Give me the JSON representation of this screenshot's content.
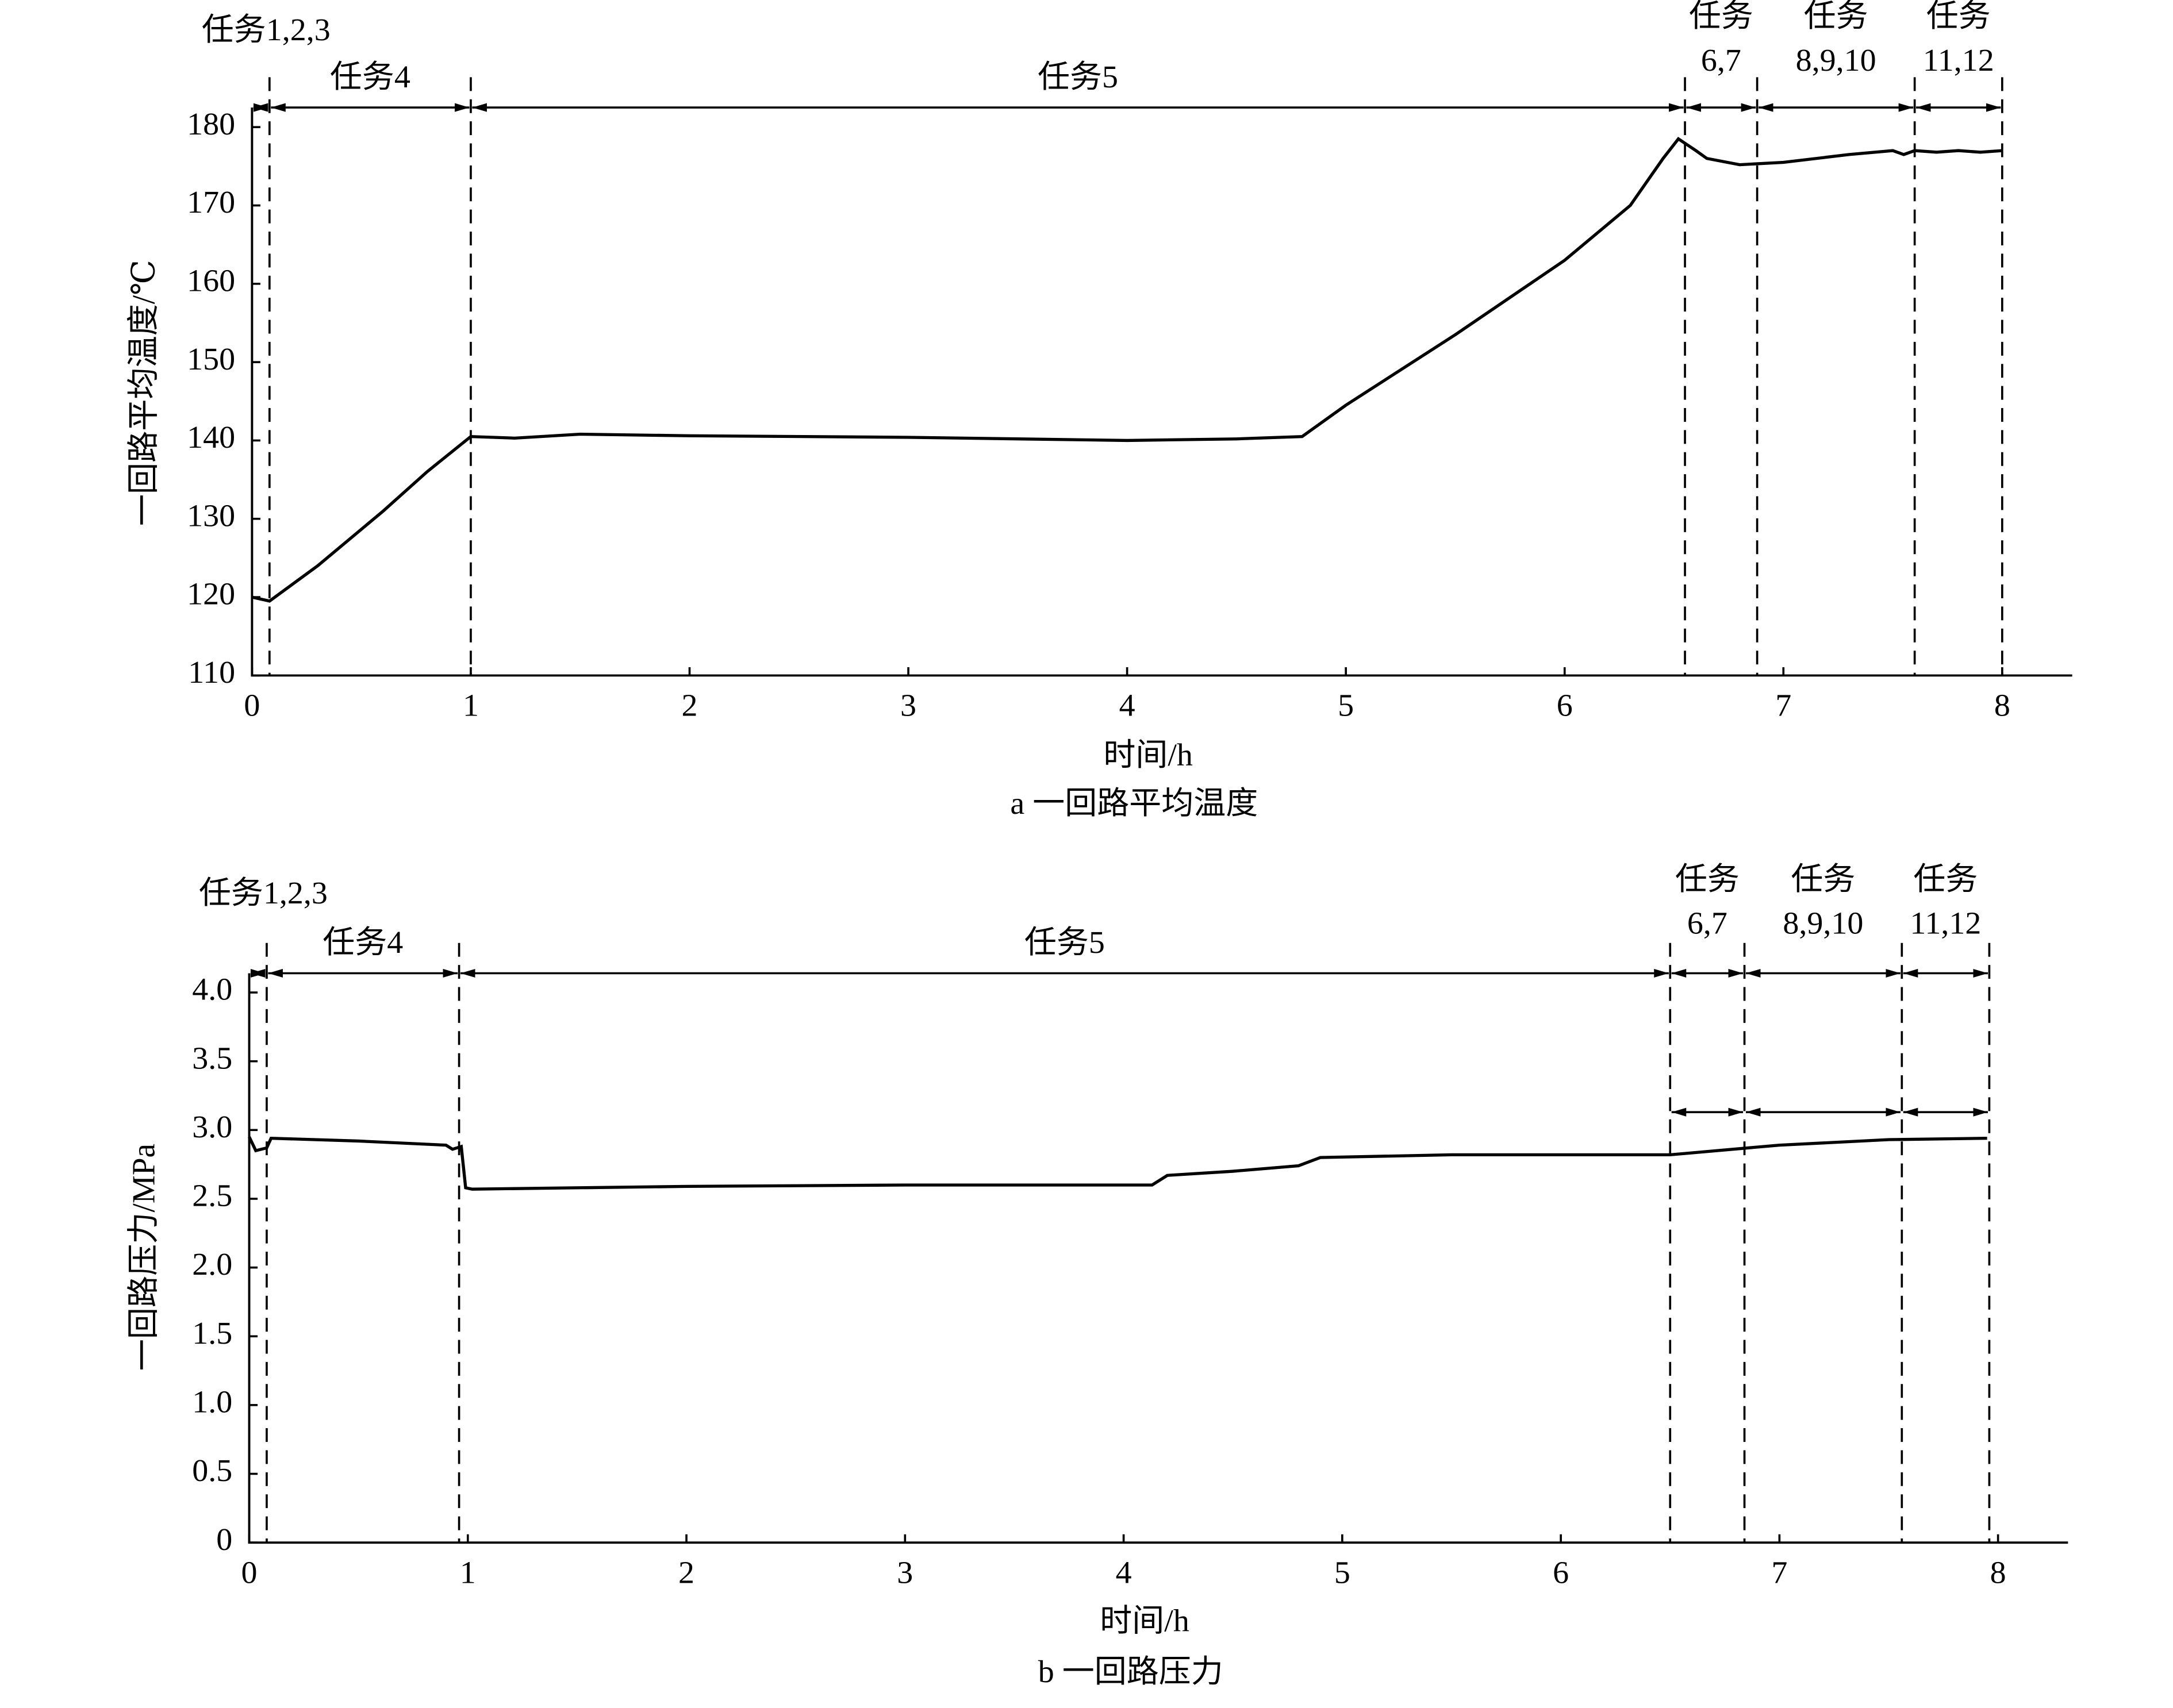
{
  "chart_data": [
    {
      "type": "line",
      "caption": "a  一回路平均温度",
      "xlabel": "时间/h",
      "ylabel": "一回路平均温度/℃",
      "color": "#000000",
      "x": [
        0,
        0.08,
        0.3,
        0.6,
        0.8,
        1,
        1.2,
        1.5,
        2,
        3,
        4,
        4.5,
        4.8,
        5,
        5.5,
        6,
        6.3,
        6.45,
        6.52,
        6.6,
        6.65,
        6.8,
        7,
        7.3,
        7.5,
        7.55,
        7.6,
        7.7,
        7.8,
        7.9,
        8
      ],
      "values": [
        120,
        119.5,
        124,
        131,
        136,
        140.5,
        140.3,
        140.8,
        140.6,
        140.4,
        140,
        140.2,
        140.5,
        144.5,
        153.5,
        163,
        170,
        176,
        178.5,
        177,
        176,
        175.2,
        175.5,
        176.5,
        177,
        176.5,
        177,
        176.8,
        177,
        176.8,
        177
      ],
      "xlim": [
        0,
        8.32
      ],
      "ylim": [
        110,
        182.5
      ],
      "xticks": [
        0,
        1,
        2,
        3,
        4,
        5,
        6,
        7,
        8
      ],
      "yticks": [
        110,
        120,
        130,
        140,
        150,
        160,
        170,
        180
      ],
      "phases": [
        {
          "label": [
            "任务1,2,3"
          ],
          "start": 0,
          "end": 0.08
        },
        {
          "label": [
            "任务4"
          ],
          "start": 0.08,
          "end": 1
        },
        {
          "label": [
            "任务5"
          ],
          "start": 1,
          "end": 6.55
        },
        {
          "label": [
            "任务",
            "6,7"
          ],
          "start": 6.55,
          "end": 6.88
        },
        {
          "label": [
            "任务",
            "8,9,10"
          ],
          "start": 6.88,
          "end": 7.6
        },
        {
          "label": [
            "任务",
            "11,12"
          ],
          "start": 7.6,
          "end": 8
        }
      ]
    },
    {
      "type": "line",
      "caption": "b  一回路压力",
      "xlabel": "时间/h",
      "ylabel": "一回路压力/MPa",
      "color": "#000000",
      "x": [
        0,
        0.03,
        0.08,
        0.1,
        0.5,
        0.9,
        0.93,
        0.97,
        0.99,
        1.02,
        2,
        3,
        4,
        4.13,
        4.2,
        4.5,
        4.8,
        4.9,
        5.5,
        6,
        6.5,
        7,
        7.5,
        7.95
      ],
      "values": [
        2.95,
        2.85,
        2.87,
        2.94,
        2.92,
        2.89,
        2.86,
        2.88,
        2.58,
        2.57,
        2.59,
        2.6,
        2.6,
        2.6,
        2.67,
        2.7,
        2.74,
        2.8,
        2.82,
        2.82,
        2.82,
        2.89,
        2.93,
        2.94
      ],
      "xlim": [
        0,
        8.32
      ],
      "ylim": [
        0,
        4.14
      ],
      "xticks": [
        0,
        1,
        2,
        3,
        4,
        5,
        6,
        7,
        8
      ],
      "yticks": [
        0,
        0.5,
        {
          "value": 1,
          "label": "1.0"
        },
        1.5,
        {
          "value": 2,
          "label": "2.0"
        },
        2.5,
        {
          "value": 3,
          "label": "3.0"
        },
        3.5,
        {
          "value": 4,
          "label": "4.0"
        }
      ],
      "phases": [
        {
          "label": [
            "任务1,2,3"
          ],
          "start": 0,
          "end": 0.08
        },
        {
          "label": [
            "任务4"
          ],
          "start": 0.08,
          "end": 0.96
        },
        {
          "label": [
            "任务5"
          ],
          "start": 0.96,
          "end": 6.5
        },
        {
          "label": [
            "任务",
            "6,7"
          ],
          "start": 6.5,
          "end": 6.84,
          "lower_arrow": 3.13
        },
        {
          "label": [
            "任务",
            "8,9,10"
          ],
          "start": 6.84,
          "end": 7.56,
          "lower_arrow": 3.13
        },
        {
          "label": [
            "任务",
            "11,12"
          ],
          "start": 7.56,
          "end": 7.96,
          "lower_arrow": 3.13
        }
      ]
    }
  ]
}
